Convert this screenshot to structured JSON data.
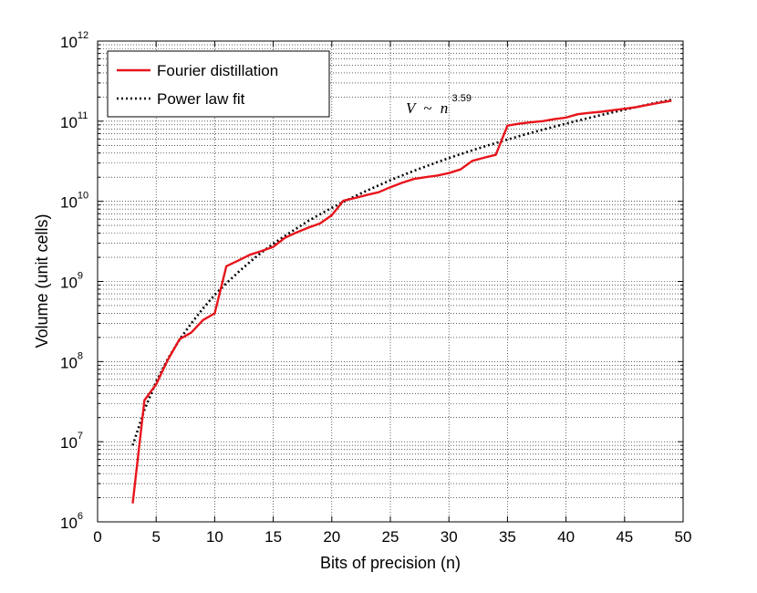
{
  "chart_data": {
    "type": "line",
    "xlabel": "Bits of precision (n)",
    "ylabel": "Volume (unit cells)",
    "xlim": [
      0,
      50
    ],
    "ylim": [
      1000000,
      1000000000000
    ],
    "yscale": "log",
    "grid": true,
    "legend_position": "top-left",
    "x_ticks": [
      "0",
      "5",
      "10",
      "15",
      "20",
      "25",
      "30",
      "35",
      "40",
      "45",
      "50"
    ],
    "y_ticks": [
      {
        "base": "10",
        "exp": "6"
      },
      {
        "base": "10",
        "exp": "7"
      },
      {
        "base": "10",
        "exp": "8"
      },
      {
        "base": "10",
        "exp": "9"
      },
      {
        "base": "10",
        "exp": "10"
      },
      {
        "base": "10",
        "exp": "11"
      },
      {
        "base": "10",
        "exp": "12"
      }
    ],
    "annotation": {
      "lhs": "V",
      "op": "~",
      "base": "n",
      "exp": "3.59"
    },
    "series": [
      {
        "name": "Fourier distillation",
        "color": "#e8141b",
        "style": "solid",
        "x": [
          3,
          4,
          5,
          6,
          7,
          8,
          9,
          10,
          11,
          12,
          13,
          14,
          15,
          16,
          17,
          18,
          19,
          20,
          21,
          22,
          23,
          24,
          25,
          26,
          27,
          28,
          29,
          30,
          31,
          32,
          33,
          34,
          35,
          36,
          37,
          38,
          39,
          40,
          41,
          42,
          43,
          44,
          45,
          46,
          47,
          48,
          49
        ],
        "y": [
          1700000,
          33000000,
          52000000,
          105000000,
          190000000,
          230000000,
          330000000,
          400000000,
          1550000000,
          1820000000,
          2150000000,
          2400000000,
          2700000000,
          3500000000,
          4100000000,
          4700000000,
          5300000000,
          6700000000,
          10200000000,
          11000000000,
          12000000000,
          13000000000,
          15000000000,
          17000000000,
          19000000000,
          20000000000,
          21000000000,
          22500000000,
          25000000000,
          32000000000,
          35000000000,
          38000000000,
          88000000000,
          93000000000,
          97000000000,
          100000000000,
          106000000000,
          111000000000,
          122000000000,
          127000000000,
          131000000000,
          137000000000,
          143000000000,
          150000000000,
          160000000000,
          170000000000,
          180000000000
        ]
      },
      {
        "name": "Power law fit",
        "color": "#000000",
        "style": "dotted",
        "x": [
          3,
          4,
          5,
          6,
          7,
          8,
          9,
          10,
          11,
          12,
          13,
          14,
          15,
          16,
          17,
          18,
          19,
          20,
          21,
          22,
          23,
          24,
          25,
          26,
          27,
          28,
          29,
          30,
          31,
          32,
          33,
          34,
          35,
          36,
          37,
          38,
          39,
          40,
          41,
          42,
          43,
          44,
          45,
          46,
          47,
          48,
          49
        ],
        "y": [
          9000000,
          25000000,
          56000000,
          108000000,
          188000000,
          300000000,
          460000000,
          680000000,
          950000000,
          1300000000,
          1750000000,
          2300000000,
          2950000000,
          3700000000,
          4600000000,
          5700000000,
          6900000000,
          8300000000,
          9900000000,
          11600000000,
          13600000000,
          15800000000,
          18300000000,
          21000000000,
          24000000000,
          27200000000,
          30800000000,
          34600000000,
          38800000000,
          43300000000,
          48200000000,
          53400000000,
          59000000000,
          65000000000,
          71500000000,
          78300000000,
          85600000000,
          93300000000,
          101500000000,
          110200000000,
          119400000000,
          129000000000,
          139200000000,
          149900000000,
          161100000000,
          172900000000,
          185300000000
        ]
      }
    ]
  }
}
